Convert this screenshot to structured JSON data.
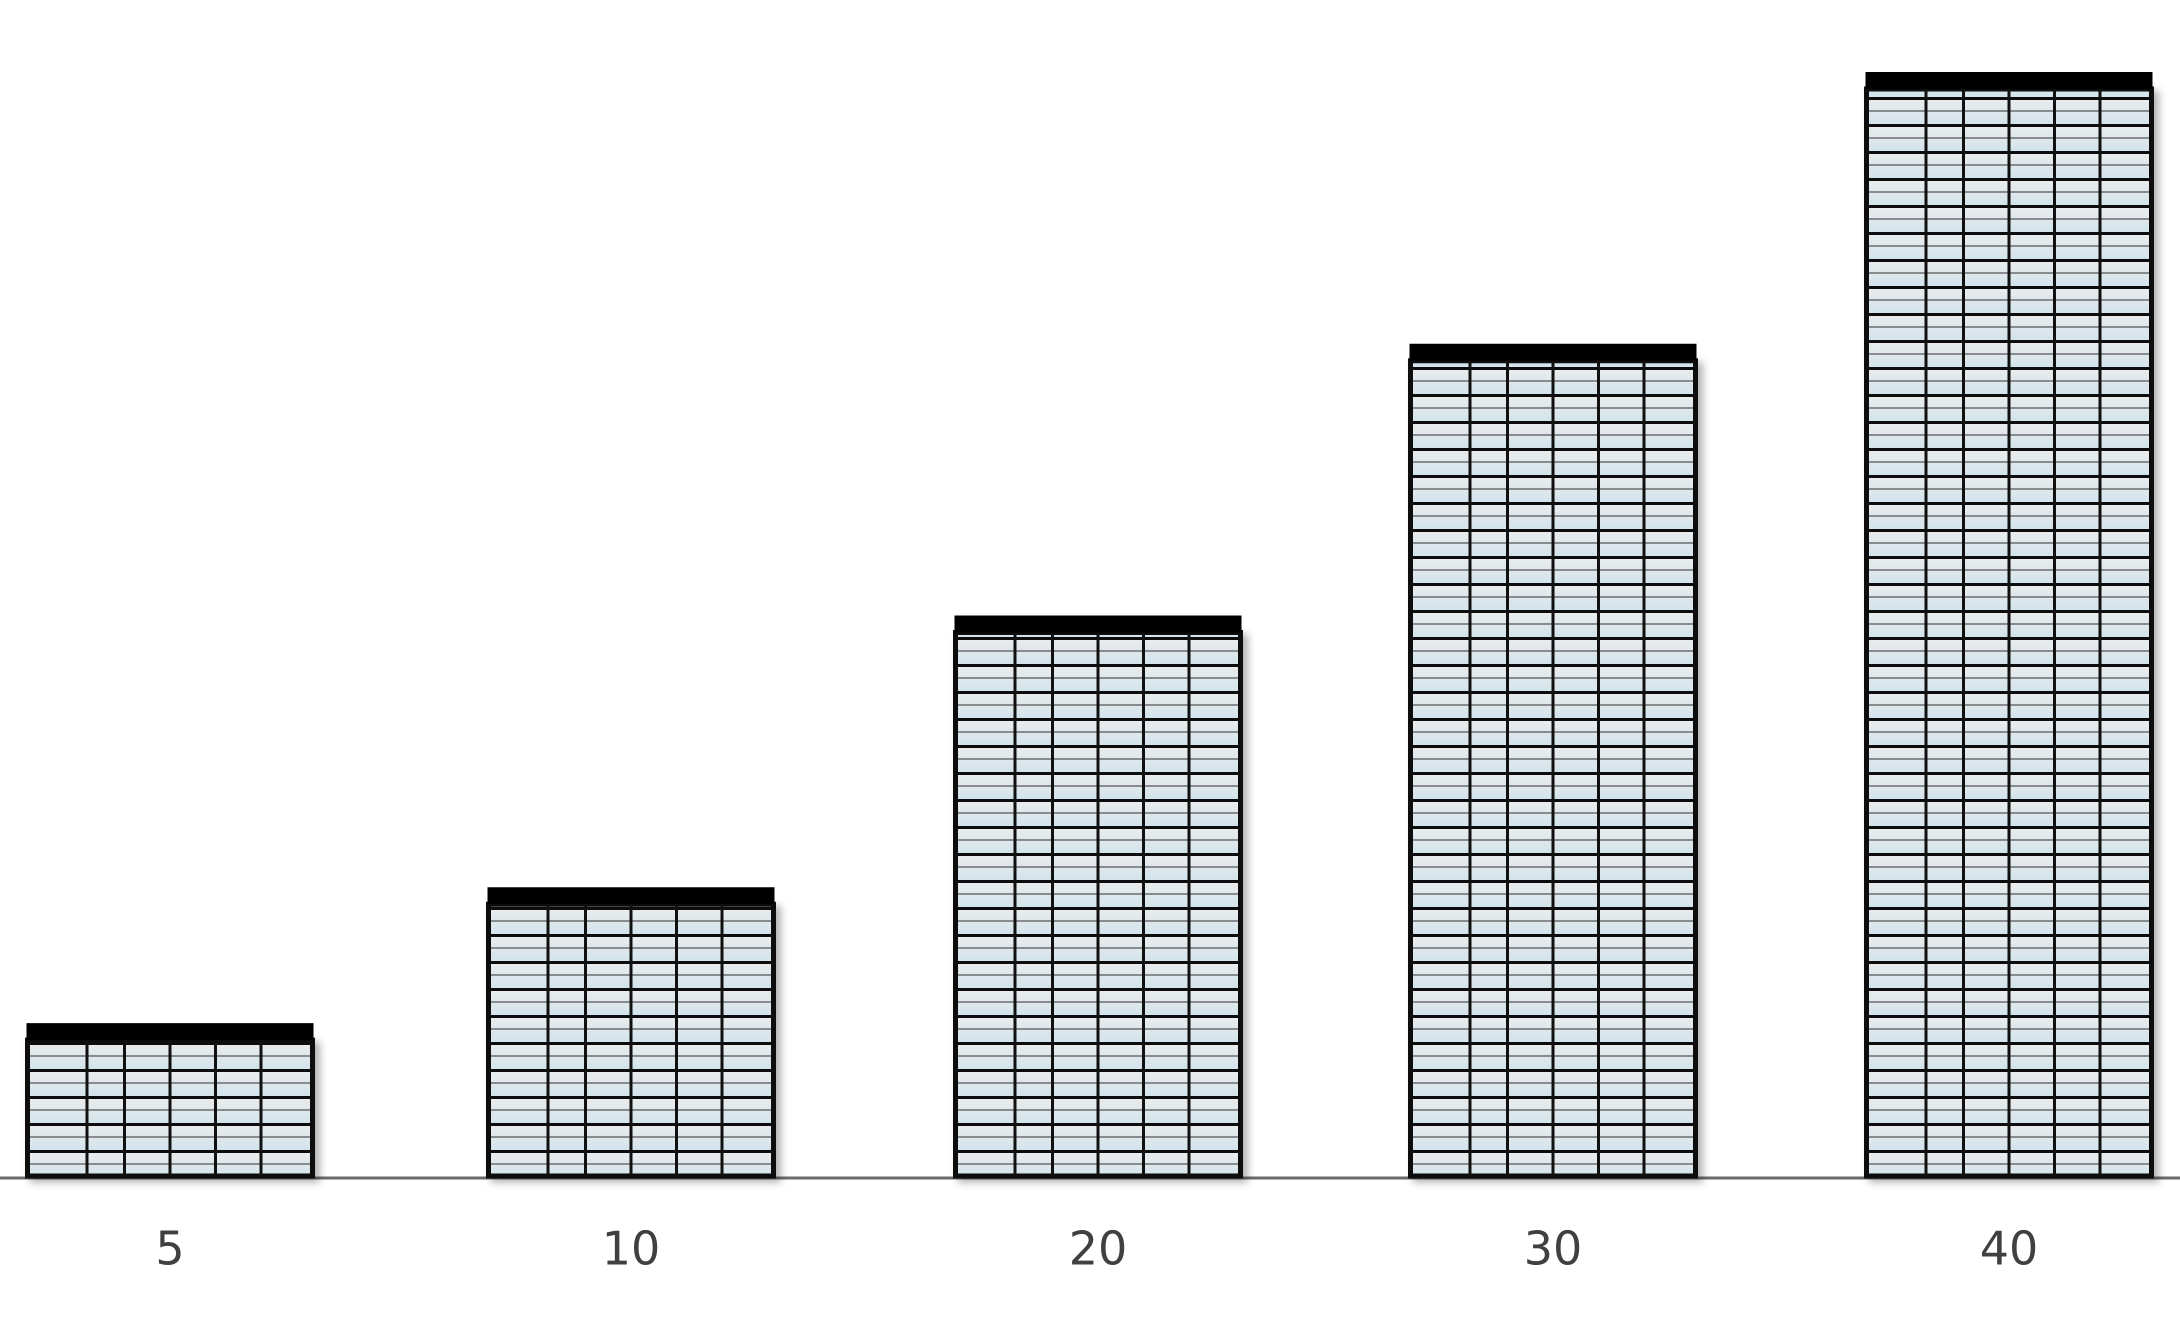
{
  "chart_data": {
    "type": "bar",
    "categories": [
      "5",
      "10",
      "20",
      "30",
      "40"
    ],
    "values": [
      5,
      10,
      20,
      30,
      40
    ],
    "ylim": [
      0,
      40
    ],
    "color": "#dfe9ee"
  }
}
